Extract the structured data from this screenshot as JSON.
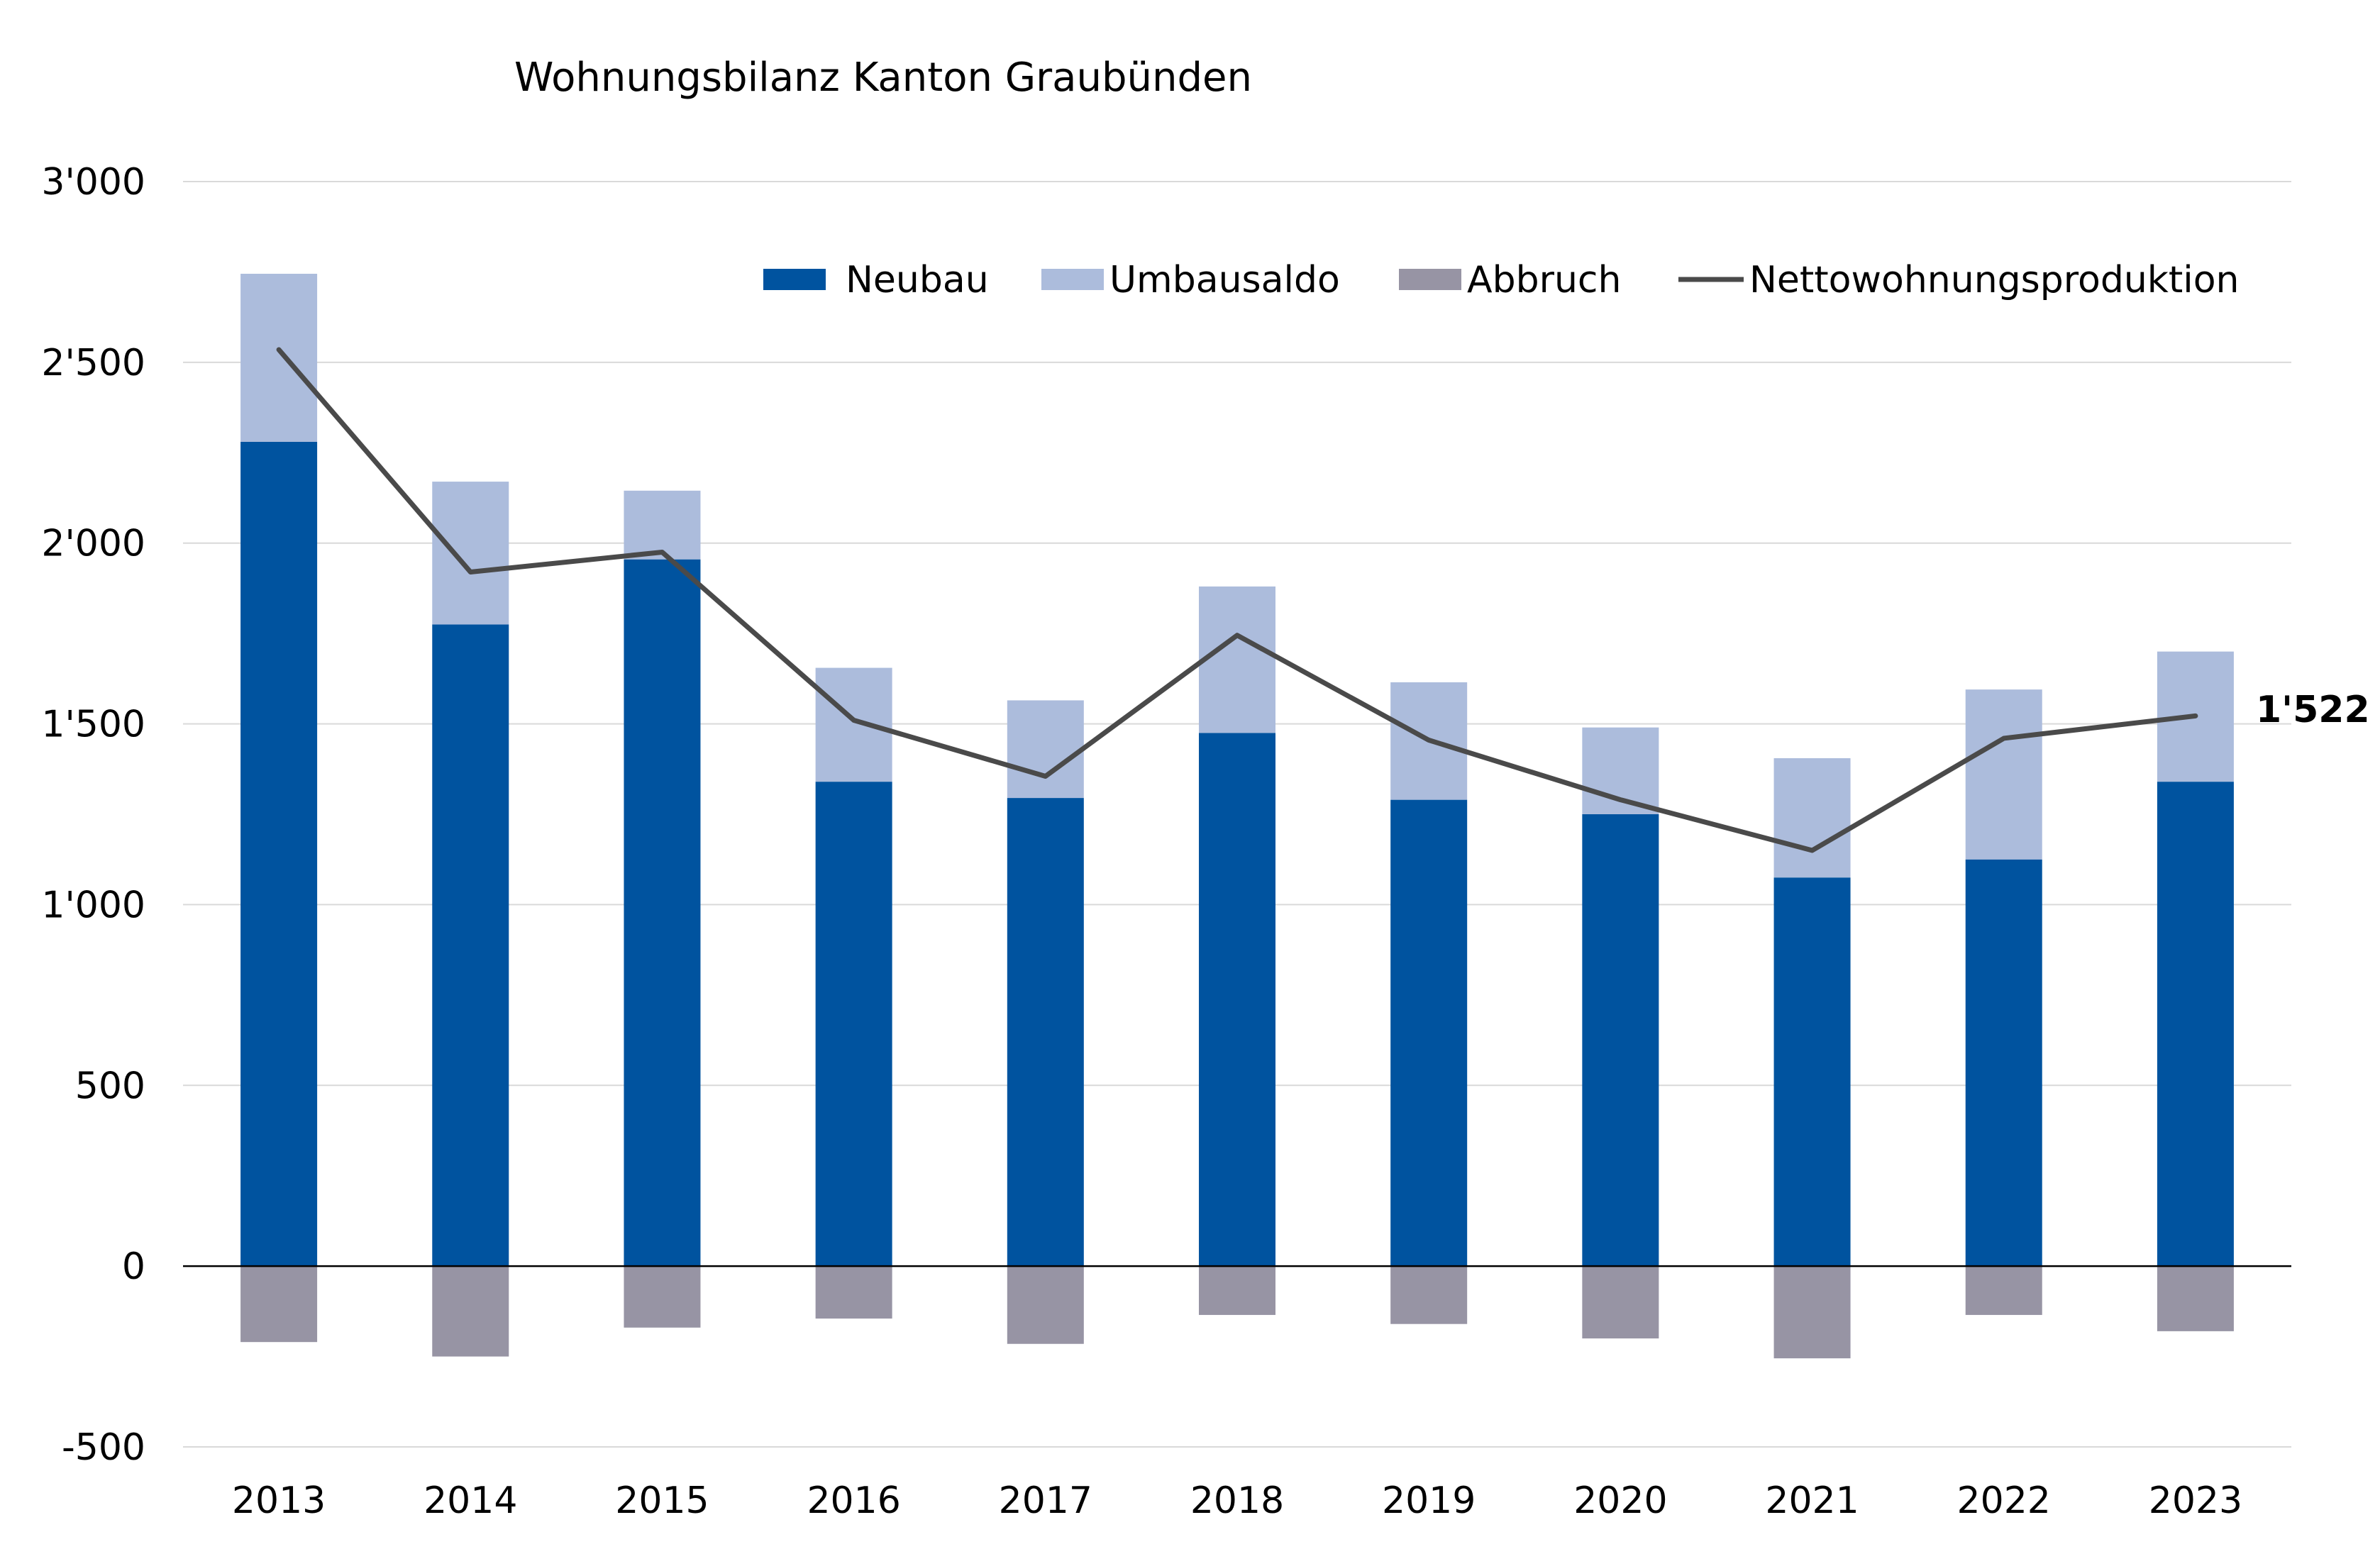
{
  "chart_data": {
    "type": "bar",
    "title": "Wohnungsbilanz Kanton Graubünden",
    "xlabel": "",
    "ylabel": "",
    "categories": [
      "2013",
      "2014",
      "2015",
      "2016",
      "2017",
      "2018",
      "2019",
      "2020",
      "2021",
      "2022",
      "2023"
    ],
    "series": [
      {
        "name": "Neubau",
        "kind": "bar-stacked",
        "color": "#00539f",
        "values": [
          2280,
          1775,
          1955,
          1340,
          1295,
          1475,
          1290,
          1250,
          1075,
          1125,
          1340
        ]
      },
      {
        "name": "Umbausaldo",
        "kind": "bar-stacked",
        "color": "#acbcdc",
        "values": [
          465,
          395,
          190,
          315,
          270,
          405,
          325,
          240,
          330,
          470,
          360
        ]
      },
      {
        "name": "Abbruch",
        "kind": "bar-stacked",
        "color": "#9794a4",
        "values": [
          -210,
          -250,
          -170,
          -145,
          -215,
          -135,
          -160,
          -200,
          -255,
          -135,
          -180
        ]
      },
      {
        "name": "Nettowohnungsproduktion",
        "kind": "line",
        "color": "#4a4a4a",
        "values": [
          2535,
          1920,
          1975,
          1510,
          1355,
          1745,
          1455,
          1290,
          1150,
          1460,
          1522
        ]
      }
    ],
    "ylim": [
      -500,
      3000
    ],
    "yticks": [
      -500,
      0,
      500,
      1000,
      1500,
      2000,
      2500,
      3000
    ],
    "ytick_labels": [
      "-500",
      "0",
      "500",
      "1'000",
      "1'500",
      "2'000",
      "2'500",
      "3'000"
    ],
    "grid": true,
    "legend_position": "top-right",
    "end_label": "1'522"
  }
}
